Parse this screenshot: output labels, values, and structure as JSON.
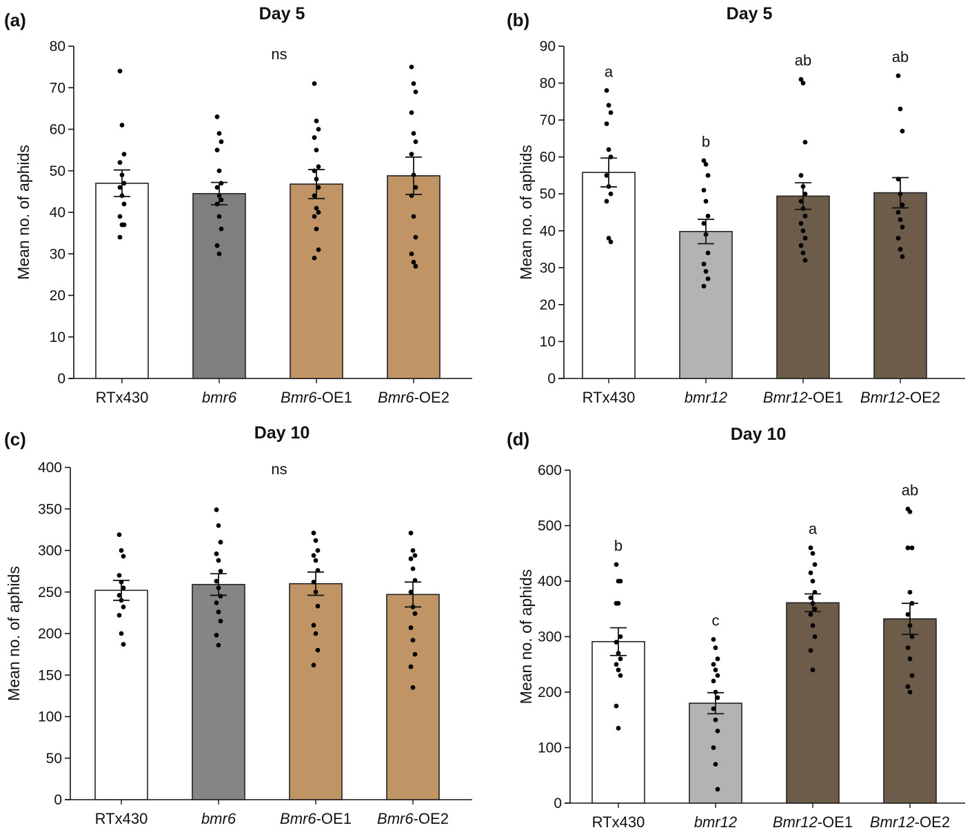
{
  "panels": [
    {
      "label": "(a)",
      "title": "Day 5",
      "ylabel": "Mean no. of aphids",
      "significance_note": "ns",
      "chart_data": {
        "type": "bar",
        "title": "Day 5",
        "ylabel": "Mean no. of aphids",
        "xlabel": "",
        "ylim": [
          0,
          80
        ],
        "yticks": [
          0,
          10,
          20,
          30,
          40,
          50,
          60,
          70,
          80
        ],
        "categories": [
          {
            "prefix": "",
            "italic": "",
            "suffix": "RTx430"
          },
          {
            "prefix": "",
            "italic": "bmr6",
            "suffix": ""
          },
          {
            "prefix": "",
            "italic": "Bmr6",
            "suffix": "-OE1"
          },
          {
            "prefix": "",
            "italic": "Bmr6",
            "suffix": "-OE2"
          }
        ],
        "values": [
          47,
          44.5,
          46.8,
          48.8
        ],
        "errors": [
          3.2,
          2.7,
          3.5,
          4.5
        ],
        "letters": [
          "",
          "",
          "",
          ""
        ],
        "colors": [
          "#ffffff",
          "#7f7f7f",
          "#c09465",
          "#c09465"
        ],
        "points": [
          [
            74,
            61,
            54,
            52,
            49,
            47,
            46,
            44,
            42,
            39,
            37,
            37,
            34
          ],
          [
            63,
            59,
            57,
            55,
            50,
            47,
            46,
            44,
            43,
            42,
            39,
            36,
            32,
            30
          ],
          [
            71,
            62,
            60,
            58,
            55,
            51,
            50,
            48,
            46,
            44,
            41,
            40,
            39,
            36,
            31,
            29
          ],
          [
            75,
            71,
            69,
            64,
            59,
            57,
            54,
            49,
            46,
            44,
            39,
            34,
            30,
            28,
            27
          ]
        ],
        "grid": false
      }
    },
    {
      "label": "(b)",
      "title": "Day 5",
      "ylabel": "Mean no. of aphids",
      "significance_note": "",
      "chart_data": {
        "type": "bar",
        "title": "Day 5",
        "ylabel": "Mean no. of aphids",
        "xlabel": "",
        "ylim": [
          0,
          90
        ],
        "yticks": [
          0,
          10,
          20,
          30,
          40,
          50,
          60,
          70,
          80,
          90
        ],
        "categories": [
          {
            "prefix": "",
            "italic": "",
            "suffix": "RTx430"
          },
          {
            "prefix": "",
            "italic": "bmr12",
            "suffix": ""
          },
          {
            "prefix": "",
            "italic": "Bmr12",
            "suffix": "-OE1"
          },
          {
            "prefix": "",
            "italic": "Bmr12",
            "suffix": "-OE2"
          }
        ],
        "values": [
          55.8,
          39.8,
          49.4,
          50.3
        ],
        "errors": [
          3.9,
          3.3,
          3.6,
          4.1
        ],
        "letters": [
          "a",
          "b",
          "ab",
          "ab"
        ],
        "colors": [
          "#ffffff",
          "#b3b3b3",
          "#6e5c4a",
          "#6e5c4a"
        ],
        "points": [
          [
            78,
            74,
            72,
            69,
            62,
            60,
            55,
            52,
            50,
            48,
            38,
            37
          ],
          [
            59,
            58,
            55,
            51,
            48,
            44,
            42,
            39,
            34,
            31,
            29,
            27,
            25
          ],
          [
            81,
            80,
            64,
            55,
            52,
            50,
            48,
            46,
            44,
            42,
            40,
            38,
            36,
            34,
            32
          ],
          [
            82,
            73,
            67,
            54,
            50,
            47,
            45,
            43,
            41,
            38,
            35,
            33
          ]
        ],
        "grid": false
      }
    },
    {
      "label": "(c)",
      "title": "Day 10",
      "ylabel": "Mean no. of aphids",
      "significance_note": "ns",
      "chart_data": {
        "type": "bar",
        "title": "Day 10",
        "ylabel": "Mean no. of aphids",
        "xlabel": "",
        "ylim": [
          0,
          400
        ],
        "yticks": [
          0,
          50,
          100,
          150,
          200,
          250,
          300,
          350,
          400
        ],
        "categories": [
          {
            "prefix": "",
            "italic": "",
            "suffix": "RTx430"
          },
          {
            "prefix": "",
            "italic": "bmr6",
            "suffix": ""
          },
          {
            "prefix": "",
            "italic": "Bmr6",
            "suffix": "-OE1"
          },
          {
            "prefix": "",
            "italic": "Bmr6",
            "suffix": "-OE2"
          }
        ],
        "values": [
          252,
          259,
          260,
          247
        ],
        "errors": [
          12,
          13,
          14,
          15
        ],
        "letters": [
          "",
          "",
          "",
          ""
        ],
        "colors": [
          "#ffffff",
          "#858585",
          "#c09465",
          "#c09465"
        ],
        "points": [
          [
            319,
            300,
            293,
            270,
            262,
            255,
            246,
            240,
            232,
            222,
            200,
            187
          ],
          [
            349,
            330,
            310,
            296,
            288,
            275,
            263,
            255,
            245,
            237,
            226,
            215,
            198,
            186
          ],
          [
            321,
            312,
            300,
            294,
            288,
            276,
            262,
            250,
            233,
            210,
            200,
            180,
            162
          ],
          [
            321,
            300,
            294,
            290,
            278,
            264,
            250,
            232,
            224,
            207,
            192,
            175,
            160,
            135
          ]
        ],
        "grid": false
      }
    },
    {
      "label": "(d)",
      "title": "Day 10",
      "ylabel": "Mean no. of aphids",
      "significance_note": "",
      "chart_data": {
        "type": "bar",
        "title": "Day 10",
        "ylabel": "Mean no. of aphids",
        "xlabel": "",
        "ylim": [
          0,
          600
        ],
        "yticks": [
          0,
          100,
          200,
          300,
          400,
          500,
          600
        ],
        "categories": [
          {
            "prefix": "",
            "italic": "",
            "suffix": "RTx430"
          },
          {
            "prefix": "",
            "italic": "bmr12",
            "suffix": ""
          },
          {
            "prefix": "",
            "italic": "Bmr12",
            "suffix": "-OE1"
          },
          {
            "prefix": "",
            "italic": "Bmr12",
            "suffix": "-OE2"
          }
        ],
        "values": [
          291,
          180,
          361,
          332
        ],
        "errors": [
          25,
          19,
          16,
          28
        ],
        "letters": [
          "b",
          "c",
          "a",
          "ab"
        ],
        "colors": [
          "#ffffff",
          "#b3b3b3",
          "#6e5c4a",
          "#6e5c4a"
        ],
        "points": [
          [
            430,
            400,
            400,
            360,
            360,
            300,
            290,
            270,
            260,
            250,
            240,
            230,
            175,
            135
          ],
          [
            295,
            280,
            260,
            250,
            240,
            230,
            220,
            200,
            190,
            170,
            150,
            130,
            100,
            70,
            25
          ],
          [
            460,
            450,
            430,
            415,
            400,
            380,
            370,
            360,
            350,
            340,
            320,
            300,
            275,
            240
          ],
          [
            530,
            525,
            460,
            460,
            380,
            360,
            340,
            320,
            300,
            280,
            260,
            230,
            210,
            200
          ]
        ],
        "grid": false
      }
    }
  ]
}
